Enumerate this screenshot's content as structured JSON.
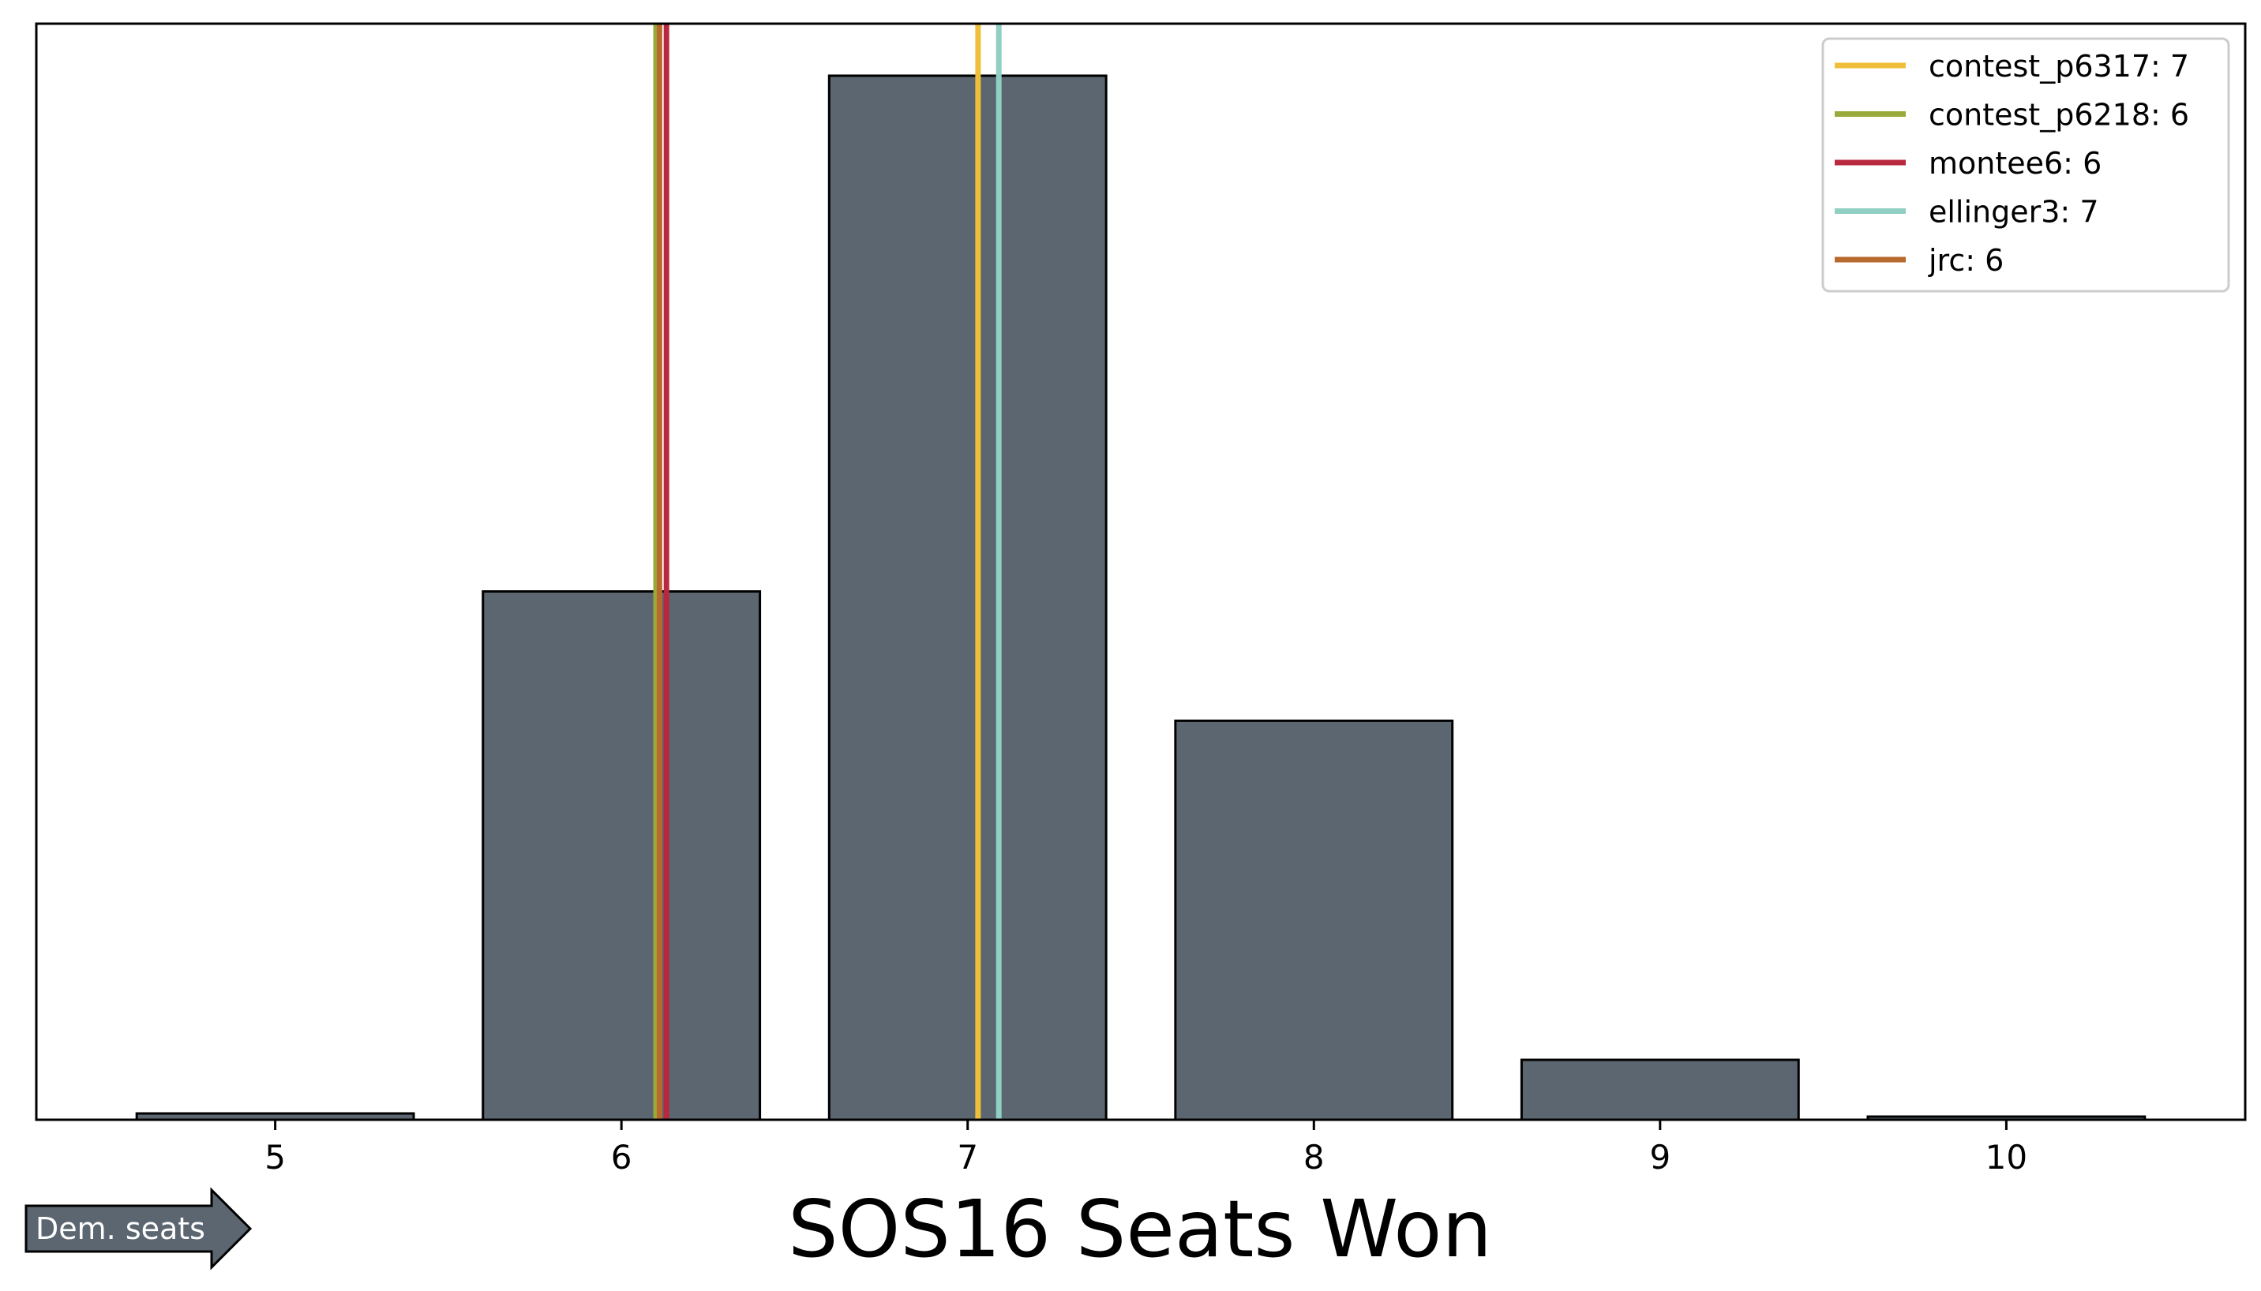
{
  "chart_data": {
    "type": "bar",
    "title": "SOS16 Seats Won",
    "xlabel": "",
    "ylabel": "",
    "categories": [
      5,
      6,
      7,
      8,
      9,
      10
    ],
    "values": [
      0.004,
      0.335,
      0.662,
      0.253,
      0.038,
      0.002
    ],
    "ylim": [
      0,
      0.695
    ],
    "bar_color": "#5b6670",
    "grid": false,
    "legend_placement": "top-right",
    "reference_lines": [
      {
        "label": "contest_p6317: 7",
        "x": 7.03,
        "color": "#f0bf3a"
      },
      {
        "label": "contest_p6218: 6",
        "x": 6.1,
        "color": "#9aaa3a"
      },
      {
        "label": "montee6: 6",
        "x": 6.13,
        "color": "#b8293f"
      },
      {
        "label": "ellinger3: 7",
        "x": 7.09,
        "color": "#8fcfc4"
      },
      {
        "label": "jrc: 6",
        "x": 6.11,
        "color": "#b86a2e"
      }
    ]
  },
  "annotation": {
    "label": "Dem. seats",
    "color": "#5b6670"
  }
}
